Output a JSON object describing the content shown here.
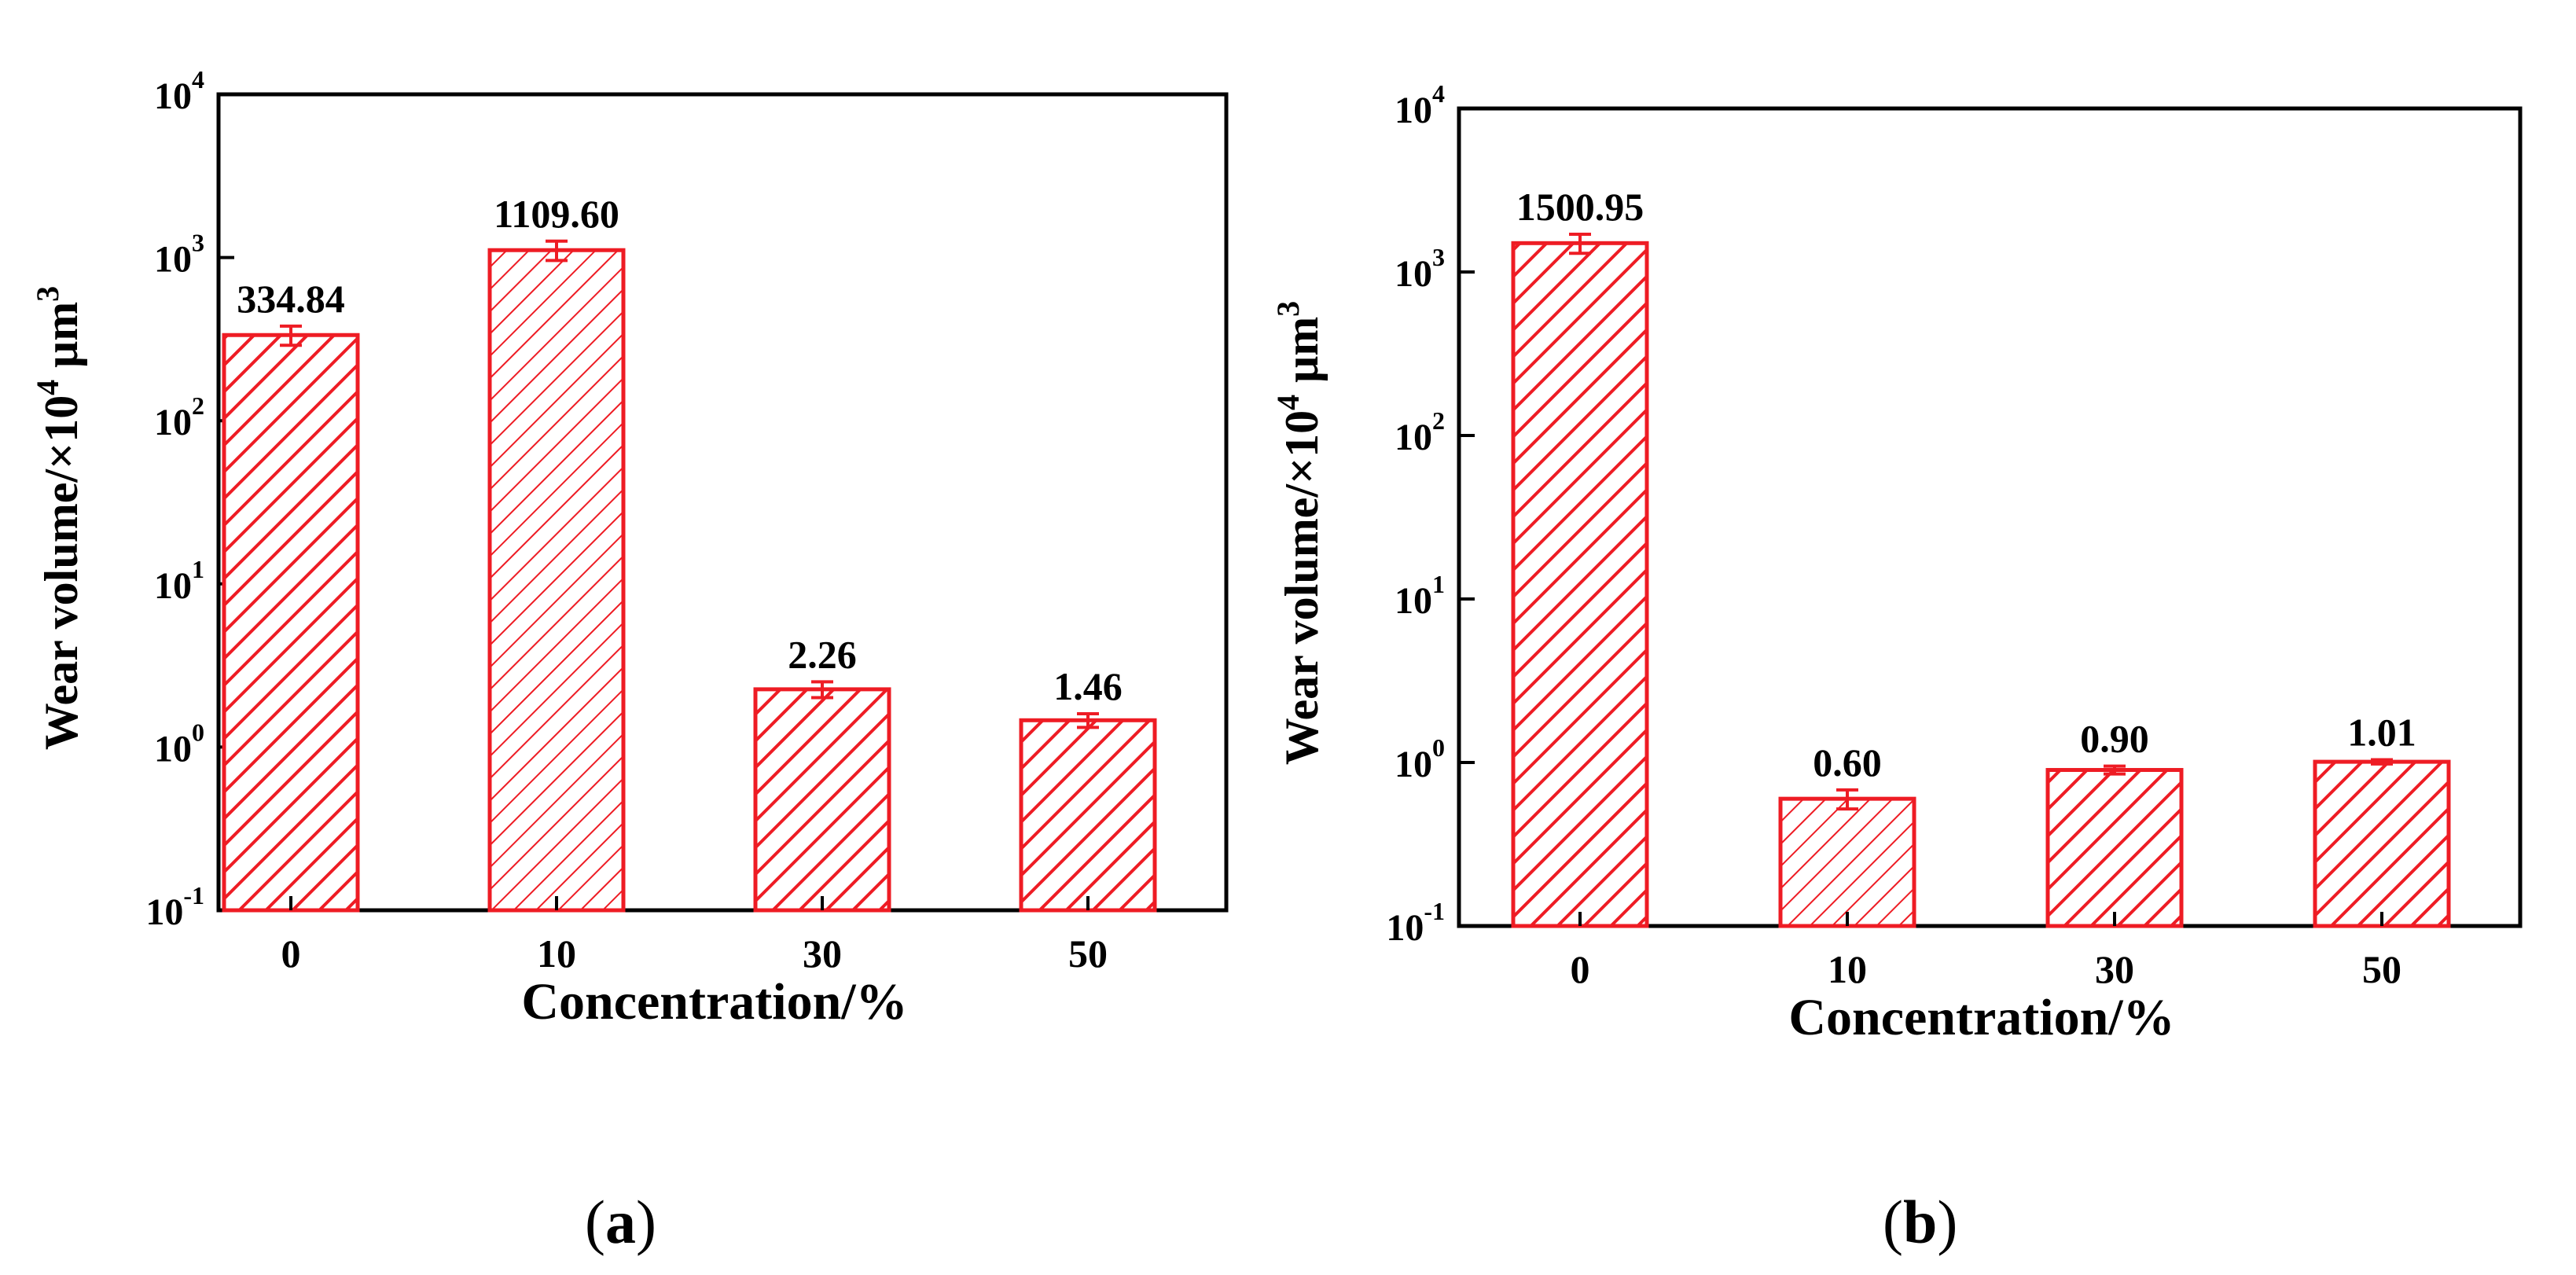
{
  "colors": {
    "bar": "#ee1c24",
    "axis": "#000000"
  },
  "chart_data": [
    {
      "type": "bar",
      "panel": "a",
      "categories": [
        "0",
        "10",
        "30",
        "50"
      ],
      "values": [
        334.84,
        1109.6,
        2.26,
        1.46
      ],
      "value_labels": [
        "334.84",
        "1109.60",
        "2.26",
        "1.46"
      ],
      "errors": [
        45,
        150,
        0.25,
        0.14
      ],
      "yscale": "log",
      "ylim": [
        0.1,
        10000
      ],
      "ytick_base": "10",
      "ytick_exponents": [
        "-1",
        "0",
        "1",
        "2",
        "3",
        "4"
      ],
      "xlabel": "Concentration/%",
      "ylabel_main": "Wear volume/×10",
      "ylabel_sup1": "4",
      "ylabel_unit": " μm",
      "ylabel_sup2": "3",
      "hatch": [
        "dense",
        "sparse",
        "dense",
        "dense"
      ]
    },
    {
      "type": "bar",
      "panel": "b",
      "categories": [
        "0",
        "10",
        "30",
        "50"
      ],
      "values": [
        1500.95,
        0.6,
        0.9,
        1.01
      ],
      "value_labels": [
        "1500.95",
        "0.60",
        "0.90",
        "1.01"
      ],
      "errors": [
        200,
        0.08,
        0.05,
        0.03
      ],
      "yscale": "log",
      "ylim": [
        0.1,
        10000
      ],
      "ytick_base": "10",
      "ytick_exponents": [
        "-1",
        "0",
        "1",
        "2",
        "3",
        "4"
      ],
      "xlabel": "Concentration/%",
      "ylabel_main": "Wear volume/×10",
      "ylabel_sup1": "4",
      "ylabel_unit": " μm",
      "ylabel_sup2": "3",
      "hatch": [
        "dense",
        "sparse",
        "dense",
        "dense"
      ]
    }
  ],
  "captions": {
    "a": "a",
    "b": "b",
    "open": "(",
    "close": ")"
  }
}
